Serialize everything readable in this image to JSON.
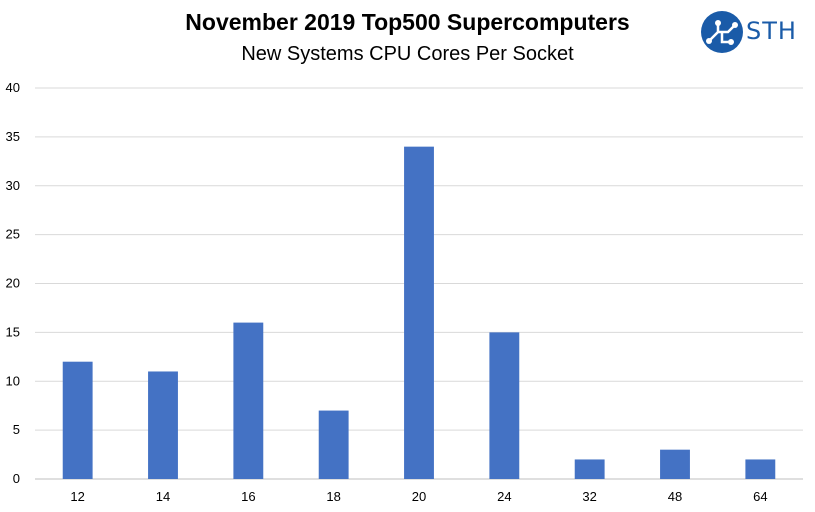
{
  "brand": {
    "logo_text": "STH",
    "logo_color": "#1a5ba8"
  },
  "chart_data": {
    "type": "bar",
    "title": "November 2019 Top500 Supercomputers",
    "subtitle": "New Systems CPU Cores Per Socket",
    "xlabel": "",
    "ylabel": "",
    "categories": [
      "12",
      "14",
      "16",
      "18",
      "20",
      "24",
      "32",
      "48",
      "64"
    ],
    "values": [
      12,
      11,
      16,
      7,
      34,
      15,
      2,
      3,
      2
    ],
    "ylim": [
      0,
      40
    ],
    "yticks": [
      0,
      5,
      10,
      15,
      20,
      25,
      30,
      35,
      40
    ],
    "grid": true,
    "legend": "none",
    "bar_color": "#4472c4",
    "grid_color": "#d9d9d9"
  }
}
